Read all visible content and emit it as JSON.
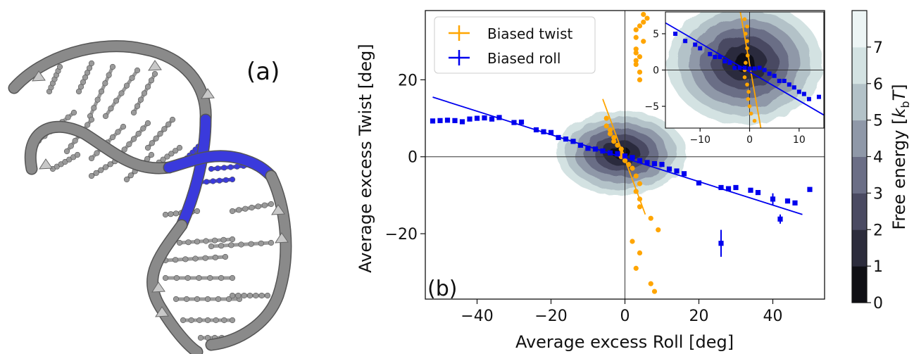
{
  "panel_a": {
    "label": "(a)",
    "colors": {
      "backbone": "#8a8a8a",
      "base": "#9a9a9a",
      "highlight": "#3a3adc"
    }
  },
  "panel_b": {
    "label": "(b)"
  },
  "colorbar": {
    "label": "Free energy [",
    "label_math": "k",
    "label_sub": "b",
    "label_math2": "T",
    "label_end": "]",
    "ticks": [
      "0",
      "1",
      "2",
      "3",
      "4",
      "5",
      "6",
      "7"
    ],
    "colors": [
      "#0f0f14",
      "#2c2c3c",
      "#4a4a62",
      "#6b6e86",
      "#8f98a8",
      "#b3c2c8",
      "#d3e2e2",
      "#edf5f5"
    ]
  },
  "chart_data": [
    {
      "type": "scatter",
      "xlabel": "Average excess Roll [deg]",
      "ylabel": "Average excess Twist [deg]",
      "xlim": [
        -54,
        54
      ],
      "ylim": [
        -37,
        38
      ],
      "xticks": [
        -40,
        -20,
        0,
        20,
        40
      ],
      "yticks": [
        -20,
        0,
        20
      ],
      "legend": {
        "placement": "top-left",
        "entries": [
          "Biased twist",
          "Biased roll"
        ]
      },
      "colors": {
        "twist": "#ffa500",
        "roll": "#0000ee"
      },
      "contour": {
        "center": [
          -1,
          1
        ],
        "levels": 7
      },
      "series": [
        {
          "name": "Biased twist",
          "marker": "circle",
          "points": [
            [
              8,
              -35
            ],
            [
              7,
              -33
            ],
            [
              3,
              -29
            ],
            [
              4,
              -25
            ],
            [
              2,
              -22
            ],
            [
              9,
              -19
            ],
            [
              7,
              -16
            ],
            [
              4,
              -13
            ],
            [
              4,
              -11
            ],
            [
              3,
              -9
            ],
            [
              4,
              -7
            ],
            [
              3,
              -5
            ],
            [
              2,
              -3
            ],
            [
              1,
              -2
            ],
            [
              0,
              -1
            ],
            [
              -1,
              0
            ],
            [
              -1,
              1
            ],
            [
              -1,
              2
            ],
            [
              -2,
              3
            ],
            [
              -3,
              4
            ],
            [
              -3,
              5
            ],
            [
              -4,
              6
            ],
            [
              -4,
              7
            ],
            [
              -5,
              8
            ],
            [
              -5,
              10
            ],
            [
              4,
              20
            ],
            [
              4,
              22
            ],
            [
              3,
              24
            ],
            [
              3,
              25
            ],
            [
              4,
              26
            ],
            [
              3,
              27
            ],
            [
              3,
              28
            ],
            [
              5,
              30
            ],
            [
              3,
              31
            ],
            [
              3,
              33
            ],
            [
              4,
              34
            ],
            [
              5,
              35
            ],
            [
              6,
              36
            ],
            [
              5,
              37
            ]
          ],
          "fit": [
            [
              -6,
              15
            ],
            [
              5.5,
              -15
            ]
          ]
        },
        {
          "name": "Biased roll",
          "marker": "square",
          "points": [
            [
              -52,
              9.3
            ],
            [
              -50,
              9.4
            ],
            [
              -48,
              9.5
            ],
            [
              -46,
              9.4
            ],
            [
              -44,
              9.1
            ],
            [
              -42,
              9.8
            ],
            [
              -40,
              10
            ],
            [
              -38,
              10.1
            ],
            [
              -36,
              9.8
            ],
            [
              -34,
              10.2
            ],
            [
              -30,
              8.9
            ],
            [
              -28,
              9
            ],
            [
              -24,
              7
            ],
            [
              -22,
              6.5
            ],
            [
              -20,
              6.3
            ],
            [
              -18,
              5
            ],
            [
              -16,
              4.6
            ],
            [
              -14,
              4
            ],
            [
              -12,
              3
            ],
            [
              -10,
              2.2
            ],
            [
              -8,
              2
            ],
            [
              -6,
              1.5
            ],
            [
              -4,
              1
            ],
            [
              -2,
              0.8
            ],
            [
              0,
              0.2
            ],
            [
              2,
              -0.2
            ],
            [
              4,
              -1
            ],
            [
              6,
              -1.5
            ],
            [
              8,
              -1.8
            ],
            [
              10,
              -2
            ],
            [
              12,
              -3.2
            ],
            [
              14,
              -3.7
            ],
            [
              16,
              -4.4
            ],
            [
              20,
              -6.8
            ],
            [
              26,
              -8
            ],
            [
              28,
              -8.3
            ],
            [
              30,
              -8
            ],
            [
              34,
              -8.7
            ],
            [
              36,
              -9.3
            ],
            [
              40,
              -11
            ],
            [
              42,
              -16.2
            ],
            [
              44,
              -11.5
            ],
            [
              46,
              -12
            ],
            [
              50,
              -8.5
            ],
            [
              26,
              -22.5
            ]
          ],
          "errors_y": [
            [
              40,
              -11,
              1.5
            ],
            [
              42,
              -16.2,
              1.2
            ],
            [
              26,
              -22.5,
              3.5
            ]
          ],
          "fit": [
            [
              -52,
              15.5
            ],
            [
              48,
              -15
            ]
          ]
        }
      ]
    },
    {
      "type": "scatter",
      "xlim": [
        -17,
        15
      ],
      "ylim": [
        -8,
        8
      ],
      "xticks": [
        -10,
        0,
        10
      ],
      "yticks": [
        -5,
        0,
        5
      ],
      "series": [
        {
          "name": "Biased twist",
          "marker": "circle",
          "points": [
            [
              -1,
              7
            ],
            [
              -0.5,
              6
            ],
            [
              -0.8,
              5
            ],
            [
              -0.5,
              4
            ],
            [
              -0.5,
              3
            ],
            [
              -0.4,
              2
            ],
            [
              -0.8,
              1
            ],
            [
              -1,
              0
            ],
            [
              -1,
              -1
            ],
            [
              -0.5,
              -2
            ],
            [
              -0.2,
              -3
            ],
            [
              -0.3,
              -4
            ],
            [
              0,
              -5
            ],
            [
              0.3,
              -6
            ],
            [
              1,
              -7
            ]
          ],
          "fit": [
            [
              -2,
              8.5
            ],
            [
              2.4,
              -8.5
            ]
          ]
        },
        {
          "name": "Biased roll",
          "marker": "square",
          "points": [
            [
              -15,
              5
            ],
            [
              -13,
              4
            ],
            [
              -11,
              3.5
            ],
            [
              -10,
              3
            ],
            [
              -8,
              2.2
            ],
            [
              -7,
              1.8
            ],
            [
              -6,
              1.8
            ],
            [
              -5,
              1.2
            ],
            [
              -4,
              1
            ],
            [
              -3,
              0.3
            ],
            [
              -2,
              0.3
            ],
            [
              -1,
              0.3
            ],
            [
              0,
              0.2
            ],
            [
              1,
              0.2
            ],
            [
              2,
              0.3
            ],
            [
              3,
              0
            ],
            [
              4,
              -0.5
            ],
            [
              5,
              -0.8
            ],
            [
              6,
              -1.5
            ],
            [
              7,
              -1.5
            ],
            [
              8,
              -2
            ],
            [
              9,
              -2.4
            ],
            [
              10,
              -3
            ],
            [
              11,
              -3.3
            ],
            [
              12,
              -4
            ],
            [
              14,
              -3.7
            ]
          ],
          "fit": [
            [
              -17,
              6.5
            ],
            [
              15,
              -6.2
            ]
          ]
        }
      ]
    }
  ]
}
